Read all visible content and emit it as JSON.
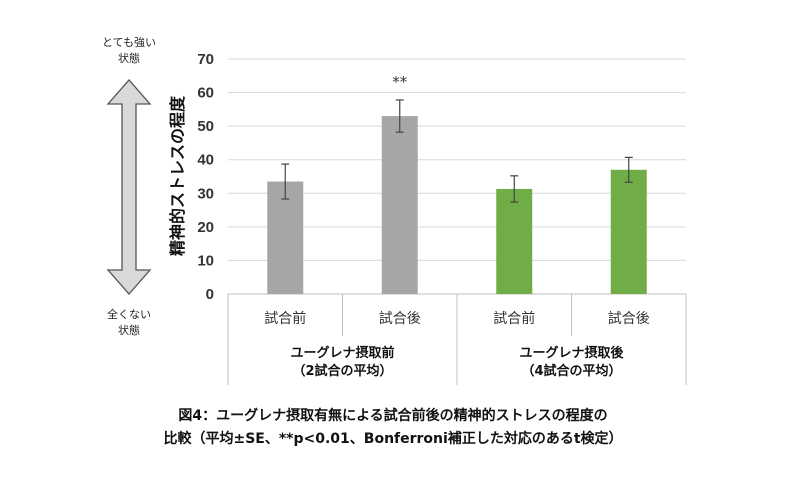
{
  "chart_data": {
    "type": "bar",
    "categories": [
      "試合前",
      "試合後",
      "試合前",
      "試合後"
    ],
    "groups": [
      {
        "label_line1": "ユーグレナ摂取前",
        "label_line2": "（2試合の平均）",
        "color": "#a6a6a6"
      },
      {
        "label_line1": "ユーグレナ摂取後",
        "label_line2": "（4試合の平均）",
        "color": "#70ad47"
      }
    ],
    "values": [
      33.5,
      53,
      31.3,
      37
    ],
    "errors": [
      5.2,
      4.8,
      3.9,
      3.7
    ],
    "bar_group": [
      0,
      0,
      1,
      1
    ],
    "significance": [
      {
        "bar": 1,
        "label": "**"
      }
    ],
    "ylabel": "精神的ストレスの程度",
    "ylim": [
      0,
      70
    ],
    "yticks": [
      0,
      10,
      20,
      30,
      40,
      50,
      60,
      70
    ],
    "grid": true,
    "scale_top_label_1": "とても強い",
    "scale_top_label_2": "状態",
    "scale_bottom_label_1": "全くない",
    "scale_bottom_label_2": "状態"
  },
  "caption": {
    "line1": "図4：ユーグレナ摂取有無による試合前後の精神的ストレスの程度の",
    "line2": "比較（平均±SE、**p<0.01、Bonferroni補正した対応のあるt検定）"
  }
}
